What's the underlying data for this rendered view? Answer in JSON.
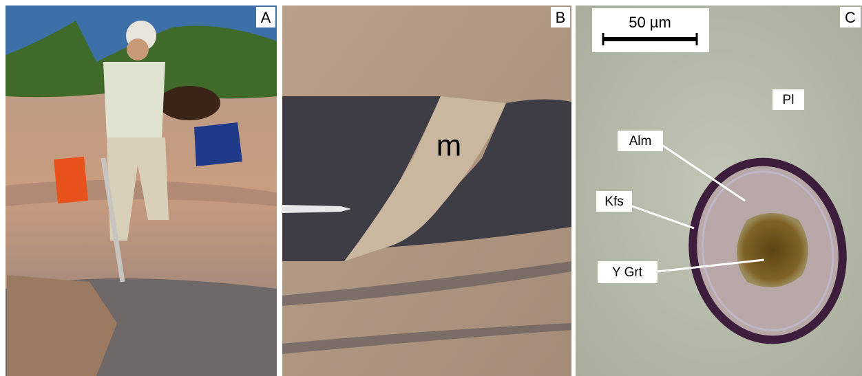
{
  "panels": [
    {
      "label": "A"
    },
    {
      "label": "B",
      "annotations": [
        "m"
      ]
    },
    {
      "label": "C",
      "scale_bar": "50 µm",
      "annotations": [
        "Pl",
        "Alm",
        "Kfs",
        "Y Grt"
      ]
    }
  ]
}
